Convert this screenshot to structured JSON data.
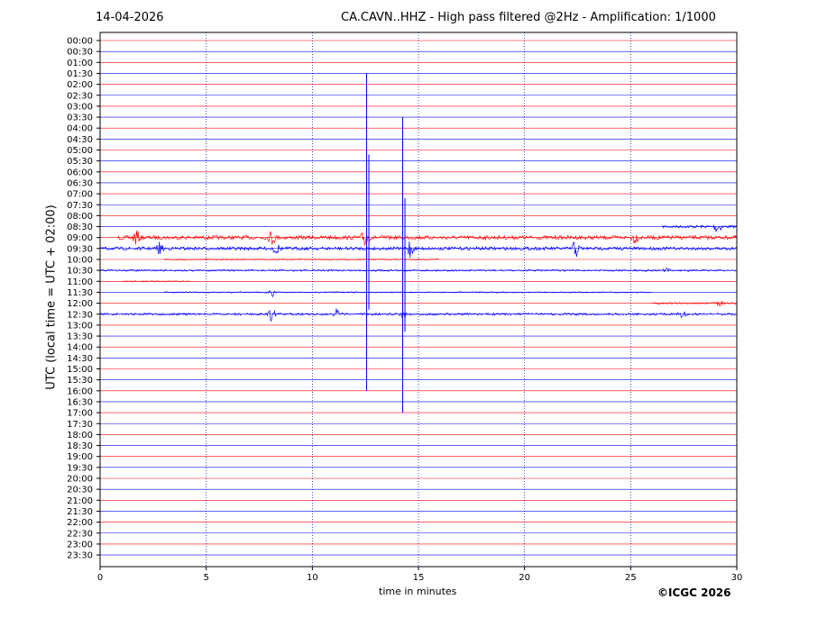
{
  "header": {
    "date": "14-04-2026",
    "title": "CA.CAVN..HHZ - High pass filtered @2Hz - Amplification: 1/1000"
  },
  "footer": {
    "copyright": "©ICGC 2026"
  },
  "chart_data": {
    "type": "line",
    "title": "CA.CAVN..HHZ - High pass filtered @2Hz - Amplification: 1/1000",
    "xlabel": "time in minutes",
    "ylabel": "UTC (local time = UTC + 02:00)",
    "xlim": [
      0,
      30
    ],
    "xticks": [
      0,
      5,
      10,
      15,
      20,
      25,
      30
    ],
    "grid": "vertical dotted lines at 5-minute intervals",
    "row_labels": [
      "00:00",
      "00:30",
      "01:00",
      "01:30",
      "02:00",
      "02:30",
      "03:00",
      "03:30",
      "04:00",
      "04:30",
      "05:00",
      "05:30",
      "06:00",
      "06:30",
      "07:00",
      "07:30",
      "08:00",
      "08:30",
      "09:00",
      "09:30",
      "10:00",
      "10:30",
      "11:00",
      "11:30",
      "12:00",
      "12:30",
      "13:00",
      "13:30",
      "14:00",
      "14:30",
      "15:00",
      "15:30",
      "16:00",
      "16:30",
      "17:00",
      "17:30",
      "18:00",
      "18:30",
      "19:00",
      "19:30",
      "20:00",
      "20:30",
      "21:00",
      "21:30",
      "22:00",
      "22:30",
      "23:00",
      "23:30"
    ],
    "colors": {
      "row_line_colors": [
        "#ff0000",
        "#0000ff"
      ],
      "grid": "#0000aa"
    },
    "activity": [
      {
        "row": "08:30",
        "t": [
          26.5,
          30
        ],
        "level": 0.25,
        "bursts": [
          {
            "t": 29.1,
            "amp": 1.4
          }
        ]
      },
      {
        "row": "09:00",
        "t": [
          0.8,
          30
        ],
        "level": 0.35,
        "bursts": [
          {
            "t": 1.7,
            "amp": 1.3
          },
          {
            "t": 8.1,
            "amp": 1.3
          },
          {
            "t": 12.5,
            "amp": 2.0
          },
          {
            "t": 25.2,
            "amp": 0.8
          }
        ]
      },
      {
        "row": "09:30",
        "t": [
          0,
          30
        ],
        "level": 0.3,
        "bursts": [
          {
            "t": 2.8,
            "amp": 1.0
          },
          {
            "t": 8.3,
            "amp": 1.0
          },
          {
            "t": 14.6,
            "amp": 1.8
          },
          {
            "t": 22.4,
            "amp": 1.7
          }
        ]
      },
      {
        "row": "10:00",
        "t": [
          3,
          16
        ],
        "level": 0.1,
        "bursts": []
      },
      {
        "row": "10:30",
        "t": [
          0,
          30
        ],
        "level": 0.15,
        "bursts": [
          {
            "t": 26.7,
            "amp": 0.3
          }
        ]
      },
      {
        "row": "11:00",
        "t": [
          1,
          4.3
        ],
        "level": 0.1,
        "bursts": []
      },
      {
        "row": "11:30",
        "t": [
          3,
          26
        ],
        "level": 0.1,
        "bursts": [
          {
            "t": 8.1,
            "amp": 0.9
          }
        ]
      },
      {
        "row": "12:00",
        "t": [
          26,
          30
        ],
        "level": 0.15,
        "bursts": [
          {
            "t": 29.2,
            "amp": 0.4
          }
        ]
      },
      {
        "row": "12:30",
        "t": [
          0,
          30
        ],
        "level": 0.2,
        "bursts": [
          {
            "t": 8.1,
            "amp": 1.3
          },
          {
            "t": 11.1,
            "amp": 0.9
          },
          {
            "t": 14.3,
            "amp": 0.6
          },
          {
            "t": 27.4,
            "amp": 0.7
          }
        ]
      }
    ],
    "spikes": [
      {
        "t": 12.6,
        "row_range": [
          "01:30",
          "16:00"
        ]
      },
      {
        "t": 14.3,
        "row_range": [
          "03:30",
          "17:00"
        ]
      }
    ]
  }
}
